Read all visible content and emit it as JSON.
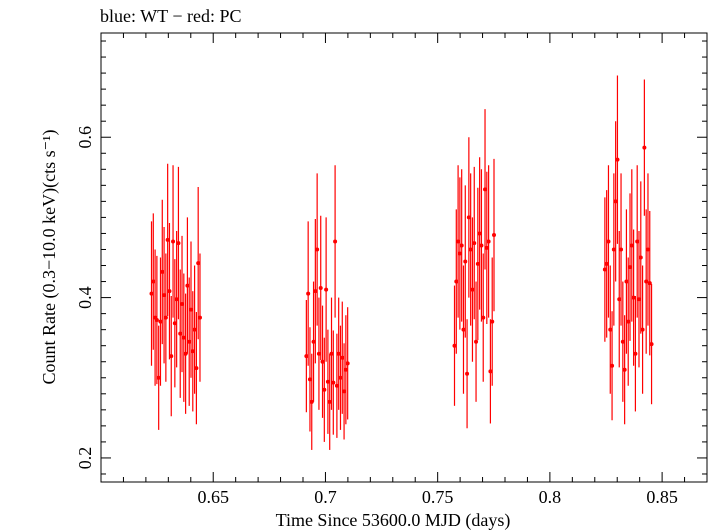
{
  "title": "blue: WT − red: PC",
  "chart_data": {
    "type": "scatter",
    "title": "blue: WT − red: PC",
    "xlabel": "Time Since 53600.0 MJD (days)",
    "ylabel": "Count Rate (0.3−10.0 keV)(cts s⁻¹)",
    "xlim": [
      0.6,
      0.87
    ],
    "ylim": [
      0.17,
      0.73
    ],
    "x_ticks": [
      0.65,
      0.7,
      0.75,
      0.8,
      0.85
    ],
    "x_tick_labels": [
      "0.65",
      "0.7",
      "0.75",
      "0.8",
      "0.85"
    ],
    "y_ticks": [
      0.2,
      0.4,
      0.6
    ],
    "y_tick_labels": [
      "0.2",
      "0.4",
      "0.6"
    ],
    "grid": false,
    "colors": {
      "PC": "#ff0000",
      "WT": "#0000ff"
    },
    "series": [
      {
        "name": "PC",
        "color": "#ff0000",
        "points": [
          {
            "x": 0.6225,
            "y": 0.405,
            "err": 0.09
          },
          {
            "x": 0.6233,
            "y": 0.42,
            "err": 0.085
          },
          {
            "x": 0.6241,
            "y": 0.375,
            "err": 0.085
          },
          {
            "x": 0.6249,
            "y": 0.372,
            "err": 0.08
          },
          {
            "x": 0.6257,
            "y": 0.3,
            "err": 0.065
          },
          {
            "x": 0.6265,
            "y": 0.37,
            "err": 0.08
          },
          {
            "x": 0.6273,
            "y": 0.432,
            "err": 0.09
          },
          {
            "x": 0.6281,
            "y": 0.403,
            "err": 0.085
          },
          {
            "x": 0.6289,
            "y": 0.375,
            "err": 0.08
          },
          {
            "x": 0.6297,
            "y": 0.472,
            "err": 0.095
          },
          {
            "x": 0.6305,
            "y": 0.408,
            "err": 0.085
          },
          {
            "x": 0.6313,
            "y": 0.327,
            "err": 0.075
          },
          {
            "x": 0.6321,
            "y": 0.47,
            "err": 0.095
          },
          {
            "x": 0.6329,
            "y": 0.368,
            "err": 0.08
          },
          {
            "x": 0.6337,
            "y": 0.398,
            "err": 0.085
          },
          {
            "x": 0.6345,
            "y": 0.468,
            "err": 0.095
          },
          {
            "x": 0.6353,
            "y": 0.355,
            "err": 0.08
          },
          {
            "x": 0.6361,
            "y": 0.392,
            "err": 0.085
          },
          {
            "x": 0.6369,
            "y": 0.35,
            "err": 0.08
          },
          {
            "x": 0.6377,
            "y": 0.33,
            "err": 0.075
          },
          {
            "x": 0.6385,
            "y": 0.415,
            "err": 0.085
          },
          {
            "x": 0.6393,
            "y": 0.345,
            "err": 0.08
          },
          {
            "x": 0.6401,
            "y": 0.385,
            "err": 0.085
          },
          {
            "x": 0.6409,
            "y": 0.333,
            "err": 0.075
          },
          {
            "x": 0.6417,
            "y": 0.36,
            "err": 0.08
          },
          {
            "x": 0.6425,
            "y": 0.312,
            "err": 0.07
          },
          {
            "x": 0.6433,
            "y": 0.443,
            "err": 0.095
          },
          {
            "x": 0.6441,
            "y": 0.375,
            "err": 0.08
          },
          {
            "x": 0.6915,
            "y": 0.327,
            "err": 0.07
          },
          {
            "x": 0.6923,
            "y": 0.405,
            "err": 0.09
          },
          {
            "x": 0.6931,
            "y": 0.298,
            "err": 0.065
          },
          {
            "x": 0.6939,
            "y": 0.27,
            "err": 0.06
          },
          {
            "x": 0.6947,
            "y": 0.345,
            "err": 0.075
          },
          {
            "x": 0.6955,
            "y": 0.408,
            "err": 0.09
          },
          {
            "x": 0.6963,
            "y": 0.46,
            "err": 0.095
          },
          {
            "x": 0.6971,
            "y": 0.33,
            "err": 0.07
          },
          {
            "x": 0.6979,
            "y": 0.412,
            "err": 0.09
          },
          {
            "x": 0.6987,
            "y": 0.32,
            "err": 0.07
          },
          {
            "x": 0.6995,
            "y": 0.285,
            "err": 0.065
          },
          {
            "x": 0.7003,
            "y": 0.41,
            "err": 0.09
          },
          {
            "x": 0.7011,
            "y": 0.295,
            "err": 0.065
          },
          {
            "x": 0.7019,
            "y": 0.27,
            "err": 0.06
          },
          {
            "x": 0.7027,
            "y": 0.33,
            "err": 0.07
          },
          {
            "x": 0.7035,
            "y": 0.294,
            "err": 0.065
          },
          {
            "x": 0.7043,
            "y": 0.47,
            "err": 0.095
          },
          {
            "x": 0.7051,
            "y": 0.29,
            "err": 0.065
          },
          {
            "x": 0.7059,
            "y": 0.33,
            "err": 0.07
          },
          {
            "x": 0.7067,
            "y": 0.3,
            "err": 0.065
          },
          {
            "x": 0.7075,
            "y": 0.325,
            "err": 0.07
          },
          {
            "x": 0.7083,
            "y": 0.283,
            "err": 0.06
          },
          {
            "x": 0.7091,
            "y": 0.31,
            "err": 0.068
          },
          {
            "x": 0.7099,
            "y": 0.318,
            "err": 0.07
          },
          {
            "x": 0.7575,
            "y": 0.34,
            "err": 0.075
          },
          {
            "x": 0.7583,
            "y": 0.42,
            "err": 0.09
          },
          {
            "x": 0.7591,
            "y": 0.47,
            "err": 0.095
          },
          {
            "x": 0.7599,
            "y": 0.455,
            "err": 0.095
          },
          {
            "x": 0.7607,
            "y": 0.465,
            "err": 0.095
          },
          {
            "x": 0.7615,
            "y": 0.36,
            "err": 0.08
          },
          {
            "x": 0.7623,
            "y": 0.445,
            "err": 0.095
          },
          {
            "x": 0.7631,
            "y": 0.305,
            "err": 0.068
          },
          {
            "x": 0.7639,
            "y": 0.5,
            "err": 0.1
          },
          {
            "x": 0.7647,
            "y": 0.46,
            "err": 0.095
          },
          {
            "x": 0.7655,
            "y": 0.41,
            "err": 0.09
          },
          {
            "x": 0.7663,
            "y": 0.468,
            "err": 0.095
          },
          {
            "x": 0.7671,
            "y": 0.345,
            "err": 0.075
          },
          {
            "x": 0.7679,
            "y": 0.442,
            "err": 0.095
          },
          {
            "x": 0.7687,
            "y": 0.48,
            "err": 0.095
          },
          {
            "x": 0.7695,
            "y": 0.465,
            "err": 0.095
          },
          {
            "x": 0.7703,
            "y": 0.375,
            "err": 0.08
          },
          {
            "x": 0.7711,
            "y": 0.535,
            "err": 0.1
          },
          {
            "x": 0.7719,
            "y": 0.462,
            "err": 0.095
          },
          {
            "x": 0.7727,
            "y": 0.47,
            "err": 0.095
          },
          {
            "x": 0.7735,
            "y": 0.308,
            "err": 0.065
          },
          {
            "x": 0.7743,
            "y": 0.37,
            "err": 0.08
          },
          {
            "x": 0.7751,
            "y": 0.478,
            "err": 0.095
          },
          {
            "x": 0.8245,
            "y": 0.435,
            "err": 0.09
          },
          {
            "x": 0.8253,
            "y": 0.442,
            "err": 0.092
          },
          {
            "x": 0.8261,
            "y": 0.47,
            "err": 0.095
          },
          {
            "x": 0.8269,
            "y": 0.36,
            "err": 0.08
          },
          {
            "x": 0.8277,
            "y": 0.315,
            "err": 0.068
          },
          {
            "x": 0.8285,
            "y": 0.46,
            "err": 0.095
          },
          {
            "x": 0.8293,
            "y": 0.52,
            "err": 0.1
          },
          {
            "x": 0.8301,
            "y": 0.572,
            "err": 0.105
          },
          {
            "x": 0.8309,
            "y": 0.398,
            "err": 0.085
          },
          {
            "x": 0.8317,
            "y": 0.46,
            "err": 0.095
          },
          {
            "x": 0.8325,
            "y": 0.345,
            "err": 0.075
          },
          {
            "x": 0.8333,
            "y": 0.31,
            "err": 0.068
          },
          {
            "x": 0.8341,
            "y": 0.42,
            "err": 0.09
          },
          {
            "x": 0.8349,
            "y": 0.37,
            "err": 0.08
          },
          {
            "x": 0.8357,
            "y": 0.438,
            "err": 0.092
          },
          {
            "x": 0.8365,
            "y": 0.465,
            "err": 0.095
          },
          {
            "x": 0.8373,
            "y": 0.4,
            "err": 0.085
          },
          {
            "x": 0.8381,
            "y": 0.33,
            "err": 0.072
          },
          {
            "x": 0.8389,
            "y": 0.47,
            "err": 0.095
          },
          {
            "x": 0.8397,
            "y": 0.398,
            "err": 0.085
          },
          {
            "x": 0.8405,
            "y": 0.45,
            "err": 0.095
          },
          {
            "x": 0.8413,
            "y": 0.36,
            "err": 0.08
          },
          {
            "x": 0.8421,
            "y": 0.587,
            "err": 0.085
          },
          {
            "x": 0.8429,
            "y": 0.42,
            "err": 0.09
          },
          {
            "x": 0.8437,
            "y": 0.46,
            "err": 0.095
          },
          {
            "x": 0.8445,
            "y": 0.418,
            "err": 0.09
          },
          {
            "x": 0.8453,
            "y": 0.342,
            "err": 0.075
          }
        ]
      }
    ]
  }
}
